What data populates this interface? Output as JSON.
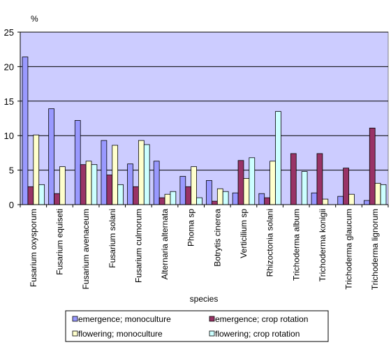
{
  "chart_data": {
    "type": "bar",
    "xlabel": "species",
    "ylabel": "%",
    "ylim": [
      0,
      25
    ],
    "yticks": [
      0,
      5,
      10,
      15,
      20,
      25
    ],
    "grid": true,
    "legend_position": "bottom",
    "categories": [
      "Fusarium oxysporum",
      "Fusarium equiseti",
      "Fusarium avenaceum",
      "Fusarium solani",
      "Fusarium culmorum",
      "Alternaria alternata",
      "Phoma sp",
      "Botrytis cinerea",
      "Verticilium sp",
      "Rhizoctonia solani",
      "Trichoderma album",
      "Trichoderma konigii",
      "Trichoderma glaucum",
      "Trichoderma lignorum"
    ],
    "series": [
      {
        "name": "emergence; monoculture",
        "color": "#9999ff",
        "values": [
          21.4,
          13.9,
          12.2,
          9.3,
          5.9,
          6.3,
          4.1,
          3.5,
          1.7,
          1.6,
          0,
          1.7,
          1.2,
          0.6
        ]
      },
      {
        "name": "emergence; crop rotation",
        "color": "#993366",
        "values": [
          2.6,
          1.6,
          5.8,
          4.3,
          2.6,
          1.0,
          2.6,
          0.5,
          6.4,
          1.0,
          7.4,
          7.4,
          5.3,
          11.1
        ]
      },
      {
        "name": "flowering; monoculture",
        "color": "#ffffcc",
        "values": [
          10.1,
          5.5,
          6.3,
          8.6,
          9.3,
          1.5,
          5.5,
          2.3,
          3.8,
          6.3,
          0,
          0.8,
          1.5,
          3.1
        ]
      },
      {
        "name": "flowering; crop rotation",
        "color": "#ccffff",
        "values": [
          2.9,
          0,
          5.8,
          2.9,
          8.7,
          1.9,
          1.0,
          1.9,
          6.8,
          13.5,
          4.8,
          0,
          0,
          2.9
        ]
      }
    ],
    "plot_bg": "#ccccff"
  }
}
